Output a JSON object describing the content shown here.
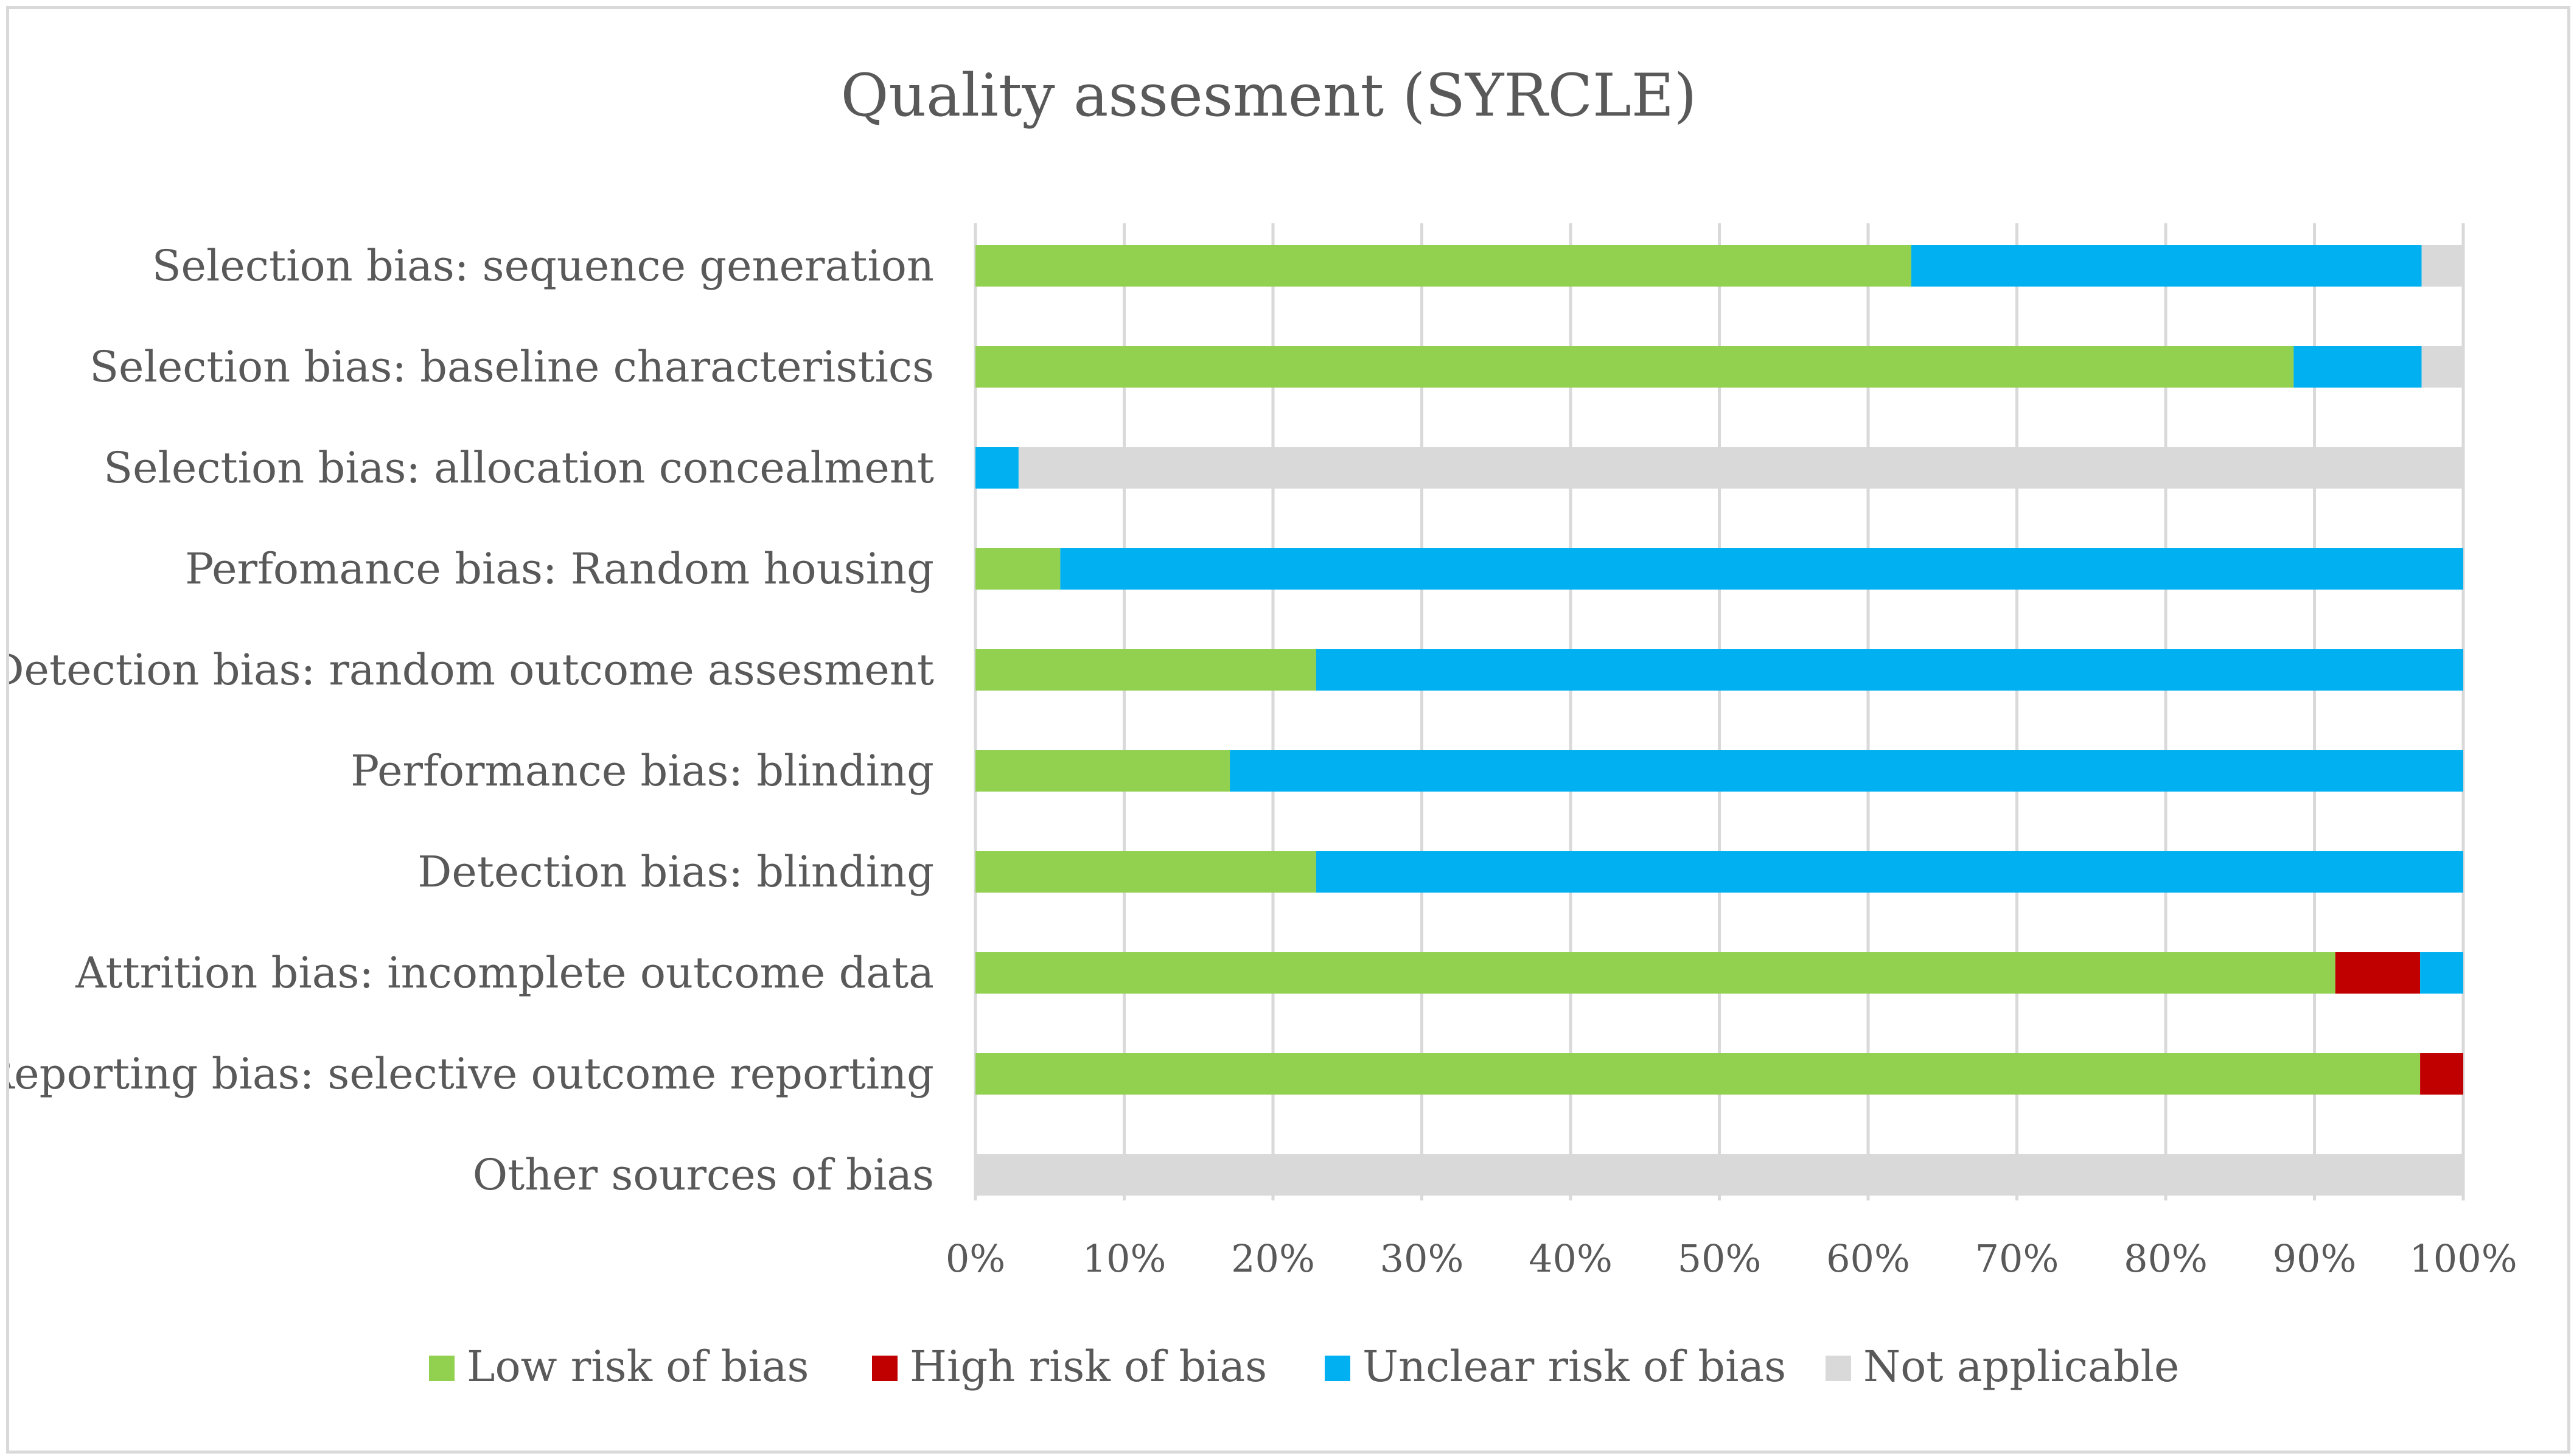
{
  "chart_data": {
    "type": "bar",
    "orientation": "horizontal",
    "stacked": "percent",
    "title": "Quality assesment (SYRCLE)",
    "xlabel": "",
    "ylabel": "",
    "xlim": [
      0,
      100
    ],
    "x_ticks": [
      "0%",
      "10%",
      "20%",
      "30%",
      "40%",
      "50%",
      "60%",
      "70%",
      "80%",
      "90%",
      "100%"
    ],
    "grid": true,
    "legend_position": "bottom",
    "categories": [
      "Selection bias: sequence generation",
      "Selection bias: baseline characteristics",
      "Selection bias: allocation concealment",
      "Perfomance bias: Random housing",
      "Detection bias: random outcome assesment",
      "Performance bias: blinding",
      "Detection bias: blinding",
      "Attrition bias: incomplete outcome data",
      "Reporting bias: selective outcome reporting",
      "Other sources of bias"
    ],
    "series": [
      {
        "name": "Low risk of bias",
        "color": "#92d050",
        "values": [
          62.9,
          88.6,
          0,
          5.7,
          22.9,
          17.1,
          22.9,
          91.4,
          97.1,
          0
        ]
      },
      {
        "name": "High risk of bias",
        "color": "#c00000",
        "values": [
          0,
          0,
          0,
          0,
          0,
          0,
          0,
          5.7,
          2.9,
          0
        ]
      },
      {
        "name": "Unclear risk of bias",
        "color": "#00b0f0",
        "values": [
          34.3,
          8.6,
          2.9,
          94.3,
          77.1,
          82.9,
          77.1,
          2.9,
          0,
          0
        ]
      },
      {
        "name": "Not applicable",
        "color": "#d9d9d9",
        "values": [
          2.8,
          2.8,
          97.1,
          0,
          0,
          0,
          0,
          0,
          0,
          100
        ]
      }
    ]
  }
}
